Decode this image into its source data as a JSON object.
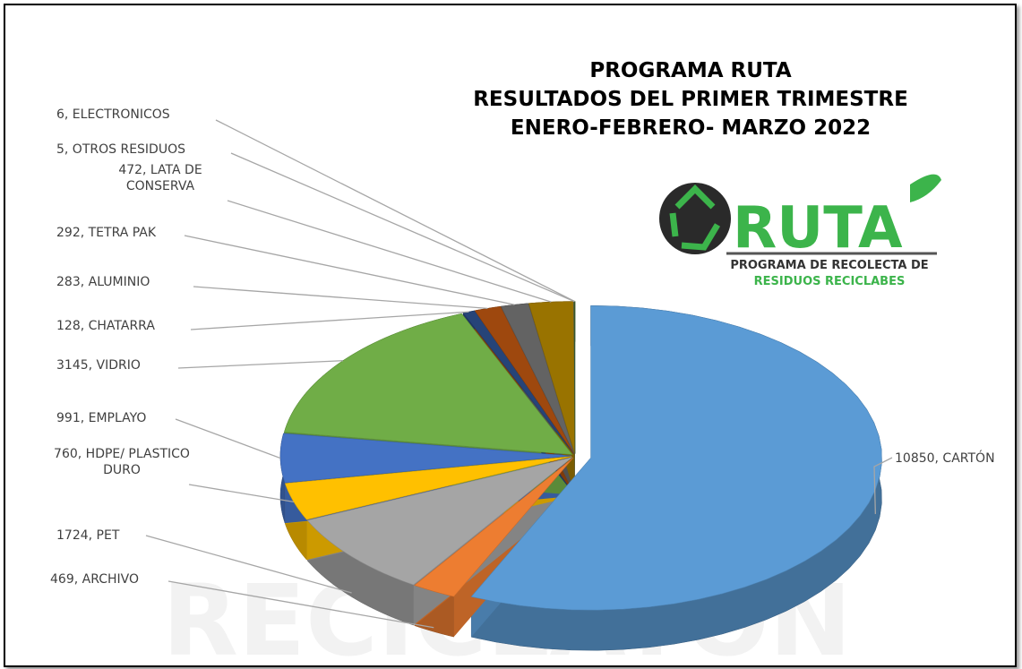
{
  "chart_data": {
    "type": "pie3d",
    "title": [
      "PROGRAMA  RUTA",
      "RESULTADOS DEL PRIMER TRIMESTRE",
      "ENERO-FEBRERO- MARZO 2022"
    ],
    "categories": [
      "CARTÓN",
      "ARCHIVO",
      "PET",
      "HDPE/ PLASTICO DURO",
      "EMPLAYO",
      "VIDRIO",
      "CHATARRA",
      "ALUMINIO",
      "TETRA PAK",
      "LATA DE CONSERVA",
      "OTROS RESIDUOS",
      "ELECTRONICOS"
    ],
    "values": [
      10850,
      469,
      1724,
      760,
      991,
      3145,
      128,
      283,
      292,
      472,
      5,
      6
    ],
    "value_labels": [
      "10850, CARTÓN",
      "469, ARCHIVO",
      "1724, PET",
      "760, HDPE/ PLASTICO DURO",
      "991, EMPLAYO",
      "3145, VIDRIO",
      "128, CHATARRA",
      "283, ALUMINIO",
      "292, TETRA PAK",
      "472, LATA DE CONSERVA",
      "5, OTROS RESIDUOS",
      "6, ELECTRONICOS"
    ],
    "colors": [
      "#5b9bd5",
      "#ed7d31",
      "#a5a5a5",
      "#ffc000",
      "#4472c4",
      "#70ad47",
      "#264478",
      "#9e480e",
      "#636363",
      "#997300",
      "#255e91",
      "#43682b"
    ],
    "logo": {
      "name": "RUTA",
      "line1": "PROGRAMA DE RECOLECTA DE",
      "line2": "RESIDUOS RECICLABES"
    },
    "watermark": "RECICLATÓN"
  }
}
